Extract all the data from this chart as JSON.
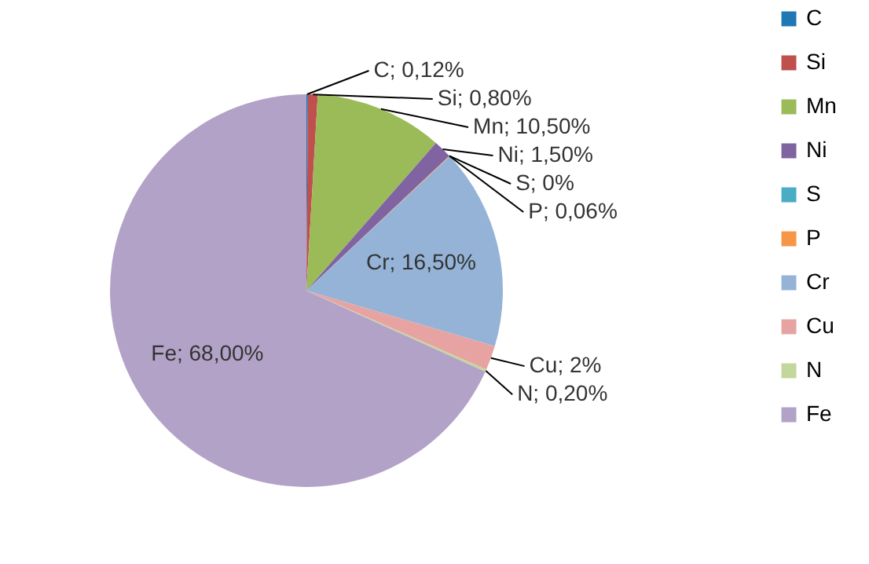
{
  "chart_data": {
    "type": "pie",
    "categories": [
      "C",
      "Si",
      "Mn",
      "Ni",
      "S",
      "P",
      "Cr",
      "Cu",
      "N",
      "Fe"
    ],
    "values": [
      0.12,
      0.8,
      10.5,
      1.5,
      0,
      0.06,
      16.5,
      2,
      0.2,
      68.0
    ],
    "value_labels": [
      "C; 0,12%",
      "Si; 0,80%",
      "Mn; 10,50%",
      "Ni; 1,50%",
      "S; 0%",
      "P; 0,06%",
      "Cr; 16,50%",
      "Cu; 2%",
      "N; 0,20%",
      "Fe; 68,00%"
    ],
    "colors": [
      "#1f77b4",
      "#c0504d",
      "#9bbb59",
      "#8064a2",
      "#4bacc6",
      "#f79646",
      "#95b3d7",
      "#e6a3a1",
      "#c3d69b",
      "#b3a2c7"
    ],
    "legend": "right"
  }
}
